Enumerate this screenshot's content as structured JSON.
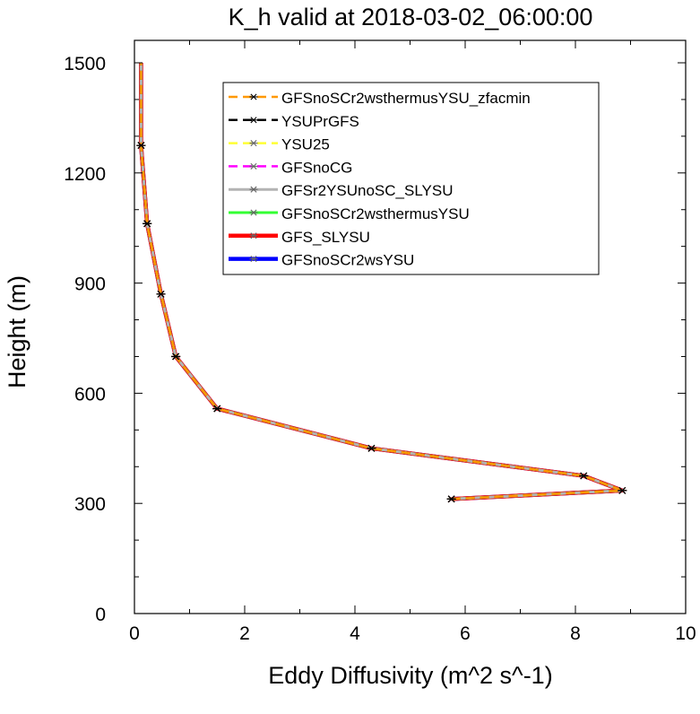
{
  "chart_data": {
    "type": "line",
    "title": "K_h valid at 2018-03-02_06:00:00",
    "xlabel": "Eddy Diffusivity (m^2 s^-1)",
    "ylabel": "Height (m)",
    "xlim": [
      0,
      10
    ],
    "ylim": [
      0,
      1500
    ],
    "xticks": [
      0,
      2,
      4,
      6,
      8,
      10
    ],
    "yticks": [
      0,
      300,
      600,
      900,
      1200,
      1500
    ],
    "xtick_labels": [
      "0",
      "2",
      "4",
      "6",
      "8",
      "10"
    ],
    "ytick_labels": [
      "0",
      "300",
      "600",
      "900",
      "1200",
      "1500"
    ],
    "grid": false,
    "legend_position": "top-right",
    "series": [
      {
        "name": "GFSnoSCr2wsthermusYSU_zfacmin",
        "color": "#ff9900",
        "dash": "dashed",
        "width": 2.5,
        "x": [
          5.75,
          8.85,
          8.15,
          4.3,
          1.5,
          0.75,
          0.48,
          0.23,
          0.12,
          0.12
        ],
        "y": [
          312,
          335,
          375,
          450,
          558,
          700,
          870,
          1062,
          1275,
          1500
        ]
      },
      {
        "name": "YSUPrGFS",
        "color": "#000000",
        "dash": "dashed",
        "width": 2.5,
        "x": [
          5.75,
          8.85,
          8.15,
          4.3,
          1.5,
          0.75,
          0.48,
          0.23,
          0.12,
          0.12
        ],
        "y": [
          312,
          335,
          375,
          450,
          558,
          700,
          870,
          1062,
          1275,
          1500
        ]
      },
      {
        "name": "YSU25",
        "color": "#ffff33",
        "dash": "dashed",
        "width": 2.5,
        "x": [
          5.75,
          8.85,
          8.15,
          4.3,
          1.5,
          0.75,
          0.48,
          0.23,
          0.12,
          0.12
        ],
        "y": [
          312,
          335,
          375,
          450,
          558,
          700,
          870,
          1062,
          1275,
          1500
        ]
      },
      {
        "name": "GFSnoCG",
        "color": "#ff00ff",
        "dash": "dashed",
        "width": 2.5,
        "x": [
          5.75,
          8.85,
          8.15,
          4.3,
          1.5,
          0.75,
          0.48,
          0.23,
          0.12,
          0.12
        ],
        "y": [
          312,
          335,
          375,
          450,
          558,
          700,
          870,
          1062,
          1275,
          1500
        ]
      },
      {
        "name": "GFSr2YSUnoSC_SLYSU",
        "color": "#b3b3b3",
        "dash": "solid",
        "width": 3,
        "x": [
          5.75,
          8.85,
          8.15,
          4.3,
          1.5,
          0.75,
          0.48,
          0.23,
          0.12,
          0.12
        ],
        "y": [
          312,
          335,
          375,
          450,
          558,
          700,
          870,
          1062,
          1275,
          1500
        ]
      },
      {
        "name": "GFSnoSCr2wsthermusYSU",
        "color": "#33ff33",
        "dash": "solid",
        "width": 3,
        "x": [
          5.75,
          8.85,
          8.15,
          4.3,
          1.5,
          0.75,
          0.48,
          0.23,
          0.12,
          0.12
        ],
        "y": [
          312,
          335,
          375,
          450,
          558,
          700,
          870,
          1062,
          1275,
          1500
        ]
      },
      {
        "name": "GFS_SLYSU",
        "color": "#ff0000",
        "dash": "solid",
        "width": 4.5,
        "x": [
          5.75,
          8.85,
          8.15,
          4.3,
          1.5,
          0.75,
          0.48,
          0.23,
          0.12,
          0.12
        ],
        "y": [
          312,
          335,
          375,
          450,
          558,
          700,
          870,
          1062,
          1275,
          1500
        ]
      },
      {
        "name": "GFSnoSCr2wsYSU",
        "color": "#0000ff",
        "dash": "solid",
        "width": 4.5,
        "x": [
          5.75,
          8.85,
          8.15,
          4.3,
          1.5,
          0.75,
          0.48,
          0.23,
          0.12,
          0.12
        ],
        "y": [
          312,
          335,
          375,
          450,
          558,
          700,
          870,
          1062,
          1275,
          1500
        ]
      }
    ]
  }
}
